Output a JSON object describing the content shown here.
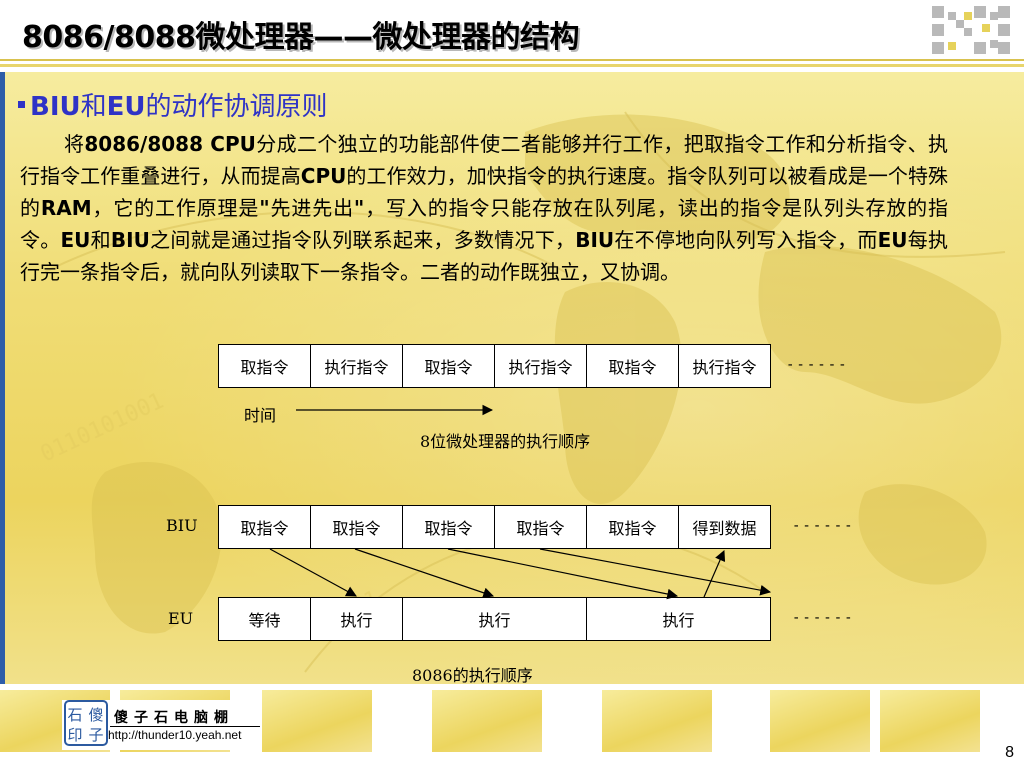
{
  "title": {
    "main": "8086/8088微处理器——微处理器的结构"
  },
  "section": {
    "heading_parts": [
      {
        "text": "BIU",
        "bold": true
      },
      {
        "text": "和",
        "bold": false
      },
      {
        "text": "EU",
        "bold": true
      },
      {
        "text": "的动作协调原则",
        "bold": false
      }
    ]
  },
  "paragraph": {
    "parts": [
      {
        "text": "将",
        "bold": false
      },
      {
        "text": "8086/8088 CPU",
        "bold": true
      },
      {
        "text": "分成二个独立的功能部件使二者能够并行工作，把取指令工作和分析指令、执行指令工作重叠进行，从而提高",
        "bold": false
      },
      {
        "text": "CPU",
        "bold": true
      },
      {
        "text": "的工作效力，加快指令的执行速度。指令队列可以被看成是一个特殊的",
        "bold": false
      },
      {
        "text": "RAM",
        "bold": true
      },
      {
        "text": "，它的工作原理是",
        "bold": false
      },
      {
        "text": "\"",
        "bold": true
      },
      {
        "text": "先进先出",
        "bold": false
      },
      {
        "text": "\"",
        "bold": true
      },
      {
        "text": "，写入的指令只能存放在队列尾，读出的指令是队列头存放的指令。",
        "bold": false
      },
      {
        "text": "EU",
        "bold": true
      },
      {
        "text": "和",
        "bold": false
      },
      {
        "text": "BIU",
        "bold": true
      },
      {
        "text": "之间就是通过指令队列联系起来，多数情况下，",
        "bold": false
      },
      {
        "text": "BIU",
        "bold": true
      },
      {
        "text": "在不停地向队列写入指令，而",
        "bold": false
      },
      {
        "text": "EU",
        "bold": true
      },
      {
        "text": "每执行完一条指令后，就向队列读取下一条指令。二者的动作既独立，又协调。",
        "bold": false
      }
    ]
  },
  "diagram8": {
    "cells": [
      "取指令",
      "执行指令",
      "取指令",
      "执行指令",
      "取指令",
      "执行指令"
    ],
    "dashes": "------",
    "time_label": "时间",
    "caption": "8位微处理器的执行顺序"
  },
  "diagram8086": {
    "biu_label": "BIU",
    "eu_label": "EU",
    "biu_cells": [
      "取指令",
      "取指令",
      "取指令",
      "取指令",
      "取指令",
      "得到数据"
    ],
    "eu_cells": [
      "等待",
      "执行",
      "执行",
      "执行"
    ],
    "biu_dashes": "------",
    "eu_dashes": "------",
    "caption": "8086的执行顺序"
  },
  "footer": {
    "logo_chars": [
      "石",
      "傻",
      "印",
      "子"
    ],
    "brand": "傻子石电脑棚",
    "url": "http://thunder10.yeah.net",
    "page_number": "8"
  },
  "colors": {
    "heading_blue": "#2f33c6",
    "panel_yellow": "#f0dd76",
    "left_bar": "#2e5da8"
  }
}
